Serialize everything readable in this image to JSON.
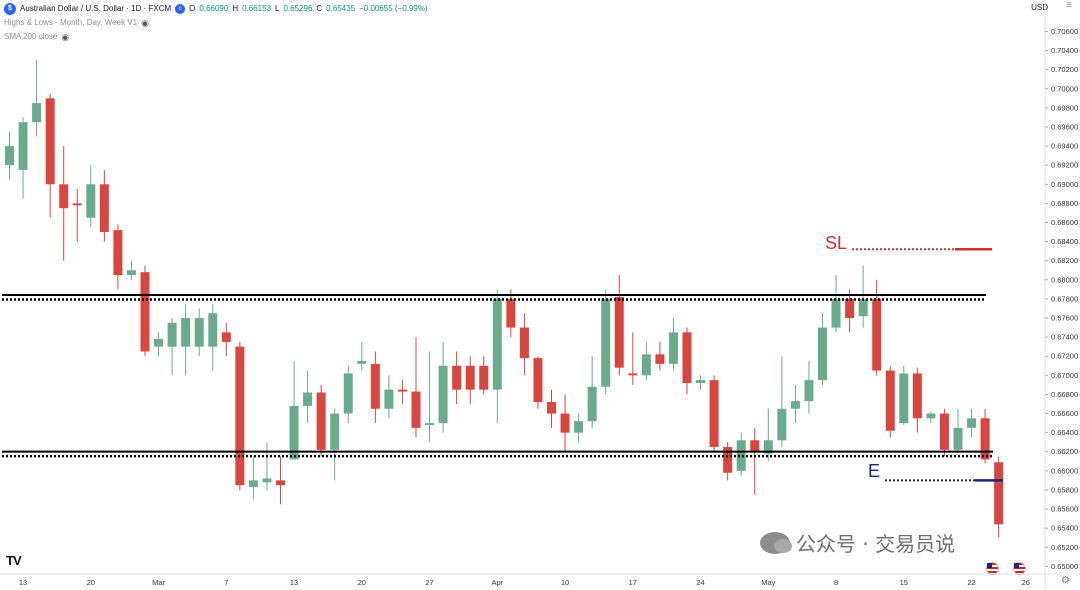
{
  "legend": {
    "symbol_icon": "aud-usd-flag-icon",
    "title": "Australian Dollar / U.S. Dollar · 1D · FXCM",
    "badge": "ⓒ",
    "ohlc": {
      "o_label": "O",
      "o": "0.66090",
      "h_label": "H",
      "h": "0.66153",
      "l_label": "L",
      "l": "0.65296",
      "c_label": "C",
      "c": "0.65435",
      "change": "−0.00655 (−0.99%)"
    },
    "indicator1": "Highs & Lows · Month, Day, Week V1",
    "indicator2": "SMA 200 close"
  },
  "currency": "USD",
  "tv_logo": "TV",
  "watermark": "公众号 · 交易员说",
  "annotations": {
    "sl": "SL",
    "e": "E"
  },
  "colors": {
    "up": "#6aab8e",
    "down": "#d9463f",
    "sl": "#d32f2f",
    "entry": "#1a237e",
    "level": "#000000"
  },
  "chart_data": {
    "type": "candlestick",
    "title": "Australian Dollar / U.S. Dollar · 1D · FXCM",
    "ylim": [
      0.6492,
      0.7072
    ],
    "y_ticks": [
      "0.70600",
      "0.70400",
      "0.70200",
      "0.70000",
      "0.69800",
      "0.69600",
      "0.69400",
      "0.69200",
      "0.69000",
      "0.68800",
      "0.68600",
      "0.68400",
      "0.68200",
      "0.68000",
      "0.67800",
      "0.67600",
      "0.67400",
      "0.67200",
      "0.67000",
      "0.66800",
      "0.66600",
      "0.66400",
      "0.66200",
      "0.66000",
      "0.65800",
      "0.65600",
      "0.65400",
      "0.65200",
      "0.65000"
    ],
    "x_tick_labels": [
      {
        "label": "13",
        "index": 1
      },
      {
        "label": "20",
        "index": 6
      },
      {
        "label": "Mar",
        "index": 11
      },
      {
        "label": "7",
        "index": 16
      },
      {
        "label": "13",
        "index": 21
      },
      {
        "label": "20",
        "index": 26
      },
      {
        "label": "27",
        "index": 31
      },
      {
        "label": "Apr",
        "index": 36
      },
      {
        "label": "10",
        "index": 41
      },
      {
        "label": "17",
        "index": 46
      },
      {
        "label": "24",
        "index": 51
      },
      {
        "label": "May",
        "index": 56
      },
      {
        "label": "8",
        "index": 61
      },
      {
        "label": "15",
        "index": 66
      },
      {
        "label": "22",
        "index": 71
      },
      {
        "label": "26",
        "index": 75
      }
    ],
    "candles": [
      {
        "o": 0.692,
        "h": 0.6955,
        "l": 0.6905,
        "c": 0.694
      },
      {
        "o": 0.6915,
        "h": 0.697,
        "l": 0.6885,
        "c": 0.6965
      },
      {
        "o": 0.6965,
        "h": 0.703,
        "l": 0.695,
        "c": 0.6985
      },
      {
        "o": 0.699,
        "h": 0.6995,
        "l": 0.6865,
        "c": 0.69
      },
      {
        "o": 0.69,
        "h": 0.694,
        "l": 0.682,
        "c": 0.6875
      },
      {
        "o": 0.688,
        "h": 0.6895,
        "l": 0.684,
        "c": 0.6878
      },
      {
        "o": 0.6865,
        "h": 0.692,
        "l": 0.6855,
        "c": 0.69
      },
      {
        "o": 0.69,
        "h": 0.6915,
        "l": 0.684,
        "c": 0.685
      },
      {
        "o": 0.6852,
        "h": 0.6858,
        "l": 0.679,
        "c": 0.6805
      },
      {
        "o": 0.6805,
        "h": 0.682,
        "l": 0.68,
        "c": 0.681
      },
      {
        "o": 0.6808,
        "h": 0.6815,
        "l": 0.672,
        "c": 0.6725
      },
      {
        "o": 0.673,
        "h": 0.6745,
        "l": 0.672,
        "c": 0.6738
      },
      {
        "o": 0.673,
        "h": 0.676,
        "l": 0.67,
        "c": 0.6755
      },
      {
        "o": 0.673,
        "h": 0.6775,
        "l": 0.67,
        "c": 0.676
      },
      {
        "o": 0.673,
        "h": 0.677,
        "l": 0.672,
        "c": 0.676
      },
      {
        "o": 0.673,
        "h": 0.6775,
        "l": 0.6705,
        "c": 0.6765
      },
      {
        "o": 0.6745,
        "h": 0.6755,
        "l": 0.672,
        "c": 0.6735
      },
      {
        "o": 0.673,
        "h": 0.6735,
        "l": 0.658,
        "c": 0.6585
      },
      {
        "o": 0.6583,
        "h": 0.6615,
        "l": 0.657,
        "c": 0.659
      },
      {
        "o": 0.6588,
        "h": 0.663,
        "l": 0.658,
        "c": 0.6592
      },
      {
        "o": 0.659,
        "h": 0.6615,
        "l": 0.6565,
        "c": 0.6585
      },
      {
        "o": 0.6612,
        "h": 0.6715,
        "l": 0.6612,
        "c": 0.6668
      },
      {
        "o": 0.6668,
        "h": 0.6705,
        "l": 0.665,
        "c": 0.6682
      },
      {
        "o": 0.6682,
        "h": 0.669,
        "l": 0.6615,
        "c": 0.6622
      },
      {
        "o": 0.6622,
        "h": 0.6665,
        "l": 0.659,
        "c": 0.666
      },
      {
        "o": 0.666,
        "h": 0.671,
        "l": 0.665,
        "c": 0.6702
      },
      {
        "o": 0.6712,
        "h": 0.6735,
        "l": 0.6705,
        "c": 0.6715
      },
      {
        "o": 0.6712,
        "h": 0.6725,
        "l": 0.665,
        "c": 0.6665
      },
      {
        "o": 0.6665,
        "h": 0.67,
        "l": 0.6655,
        "c": 0.6685
      },
      {
        "o": 0.6685,
        "h": 0.6695,
        "l": 0.667,
        "c": 0.6683
      },
      {
        "o": 0.6683,
        "h": 0.674,
        "l": 0.6635,
        "c": 0.6645
      },
      {
        "o": 0.6648,
        "h": 0.6725,
        "l": 0.663,
        "c": 0.665
      },
      {
        "o": 0.665,
        "h": 0.6735,
        "l": 0.664,
        "c": 0.671
      },
      {
        "o": 0.671,
        "h": 0.6725,
        "l": 0.667,
        "c": 0.6685
      },
      {
        "o": 0.671,
        "h": 0.672,
        "l": 0.667,
        "c": 0.6685
      },
      {
        "o": 0.671,
        "h": 0.672,
        "l": 0.668,
        "c": 0.6685
      },
      {
        "o": 0.6685,
        "h": 0.679,
        "l": 0.665,
        "c": 0.678
      },
      {
        "o": 0.678,
        "h": 0.679,
        "l": 0.674,
        "c": 0.675
      },
      {
        "o": 0.675,
        "h": 0.6765,
        "l": 0.67,
        "c": 0.6718
      },
      {
        "o": 0.6718,
        "h": 0.672,
        "l": 0.6665,
        "c": 0.6672
      },
      {
        "o": 0.6672,
        "h": 0.6685,
        "l": 0.6645,
        "c": 0.666
      },
      {
        "o": 0.666,
        "h": 0.668,
        "l": 0.662,
        "c": 0.664
      },
      {
        "o": 0.664,
        "h": 0.666,
        "l": 0.663,
        "c": 0.6652
      },
      {
        "o": 0.6652,
        "h": 0.672,
        "l": 0.6645,
        "c": 0.6688
      },
      {
        "o": 0.6688,
        "h": 0.679,
        "l": 0.668,
        "c": 0.678
      },
      {
        "o": 0.6782,
        "h": 0.6805,
        "l": 0.67,
        "c": 0.6708
      },
      {
        "o": 0.6702,
        "h": 0.6745,
        "l": 0.669,
        "c": 0.67
      },
      {
        "o": 0.67,
        "h": 0.6735,
        "l": 0.6695,
        "c": 0.6722
      },
      {
        "o": 0.6722,
        "h": 0.6735,
        "l": 0.6705,
        "c": 0.6712
      },
      {
        "o": 0.6712,
        "h": 0.676,
        "l": 0.6705,
        "c": 0.6745
      },
      {
        "o": 0.6745,
        "h": 0.675,
        "l": 0.668,
        "c": 0.6692
      },
      {
        "o": 0.6692,
        "h": 0.67,
        "l": 0.6685,
        "c": 0.6695
      },
      {
        "o": 0.6695,
        "h": 0.67,
        "l": 0.662,
        "c": 0.6625
      },
      {
        "o": 0.6625,
        "h": 0.663,
        "l": 0.659,
        "c": 0.6598
      },
      {
        "o": 0.66,
        "h": 0.664,
        "l": 0.6595,
        "c": 0.6632
      },
      {
        "o": 0.6632,
        "h": 0.6645,
        "l": 0.6575,
        "c": 0.662
      },
      {
        "o": 0.6618,
        "h": 0.6665,
        "l": 0.661,
        "c": 0.6632
      },
      {
        "o": 0.6632,
        "h": 0.672,
        "l": 0.6625,
        "c": 0.6665
      },
      {
        "o": 0.6665,
        "h": 0.669,
        "l": 0.665,
        "c": 0.6673
      },
      {
        "o": 0.6673,
        "h": 0.6715,
        "l": 0.666,
        "c": 0.6695
      },
      {
        "o": 0.6695,
        "h": 0.6765,
        "l": 0.669,
        "c": 0.675
      },
      {
        "o": 0.675,
        "h": 0.6805,
        "l": 0.6745,
        "c": 0.678
      },
      {
        "o": 0.678,
        "h": 0.679,
        "l": 0.6745,
        "c": 0.676
      },
      {
        "o": 0.6762,
        "h": 0.6815,
        "l": 0.675,
        "c": 0.678
      },
      {
        "o": 0.678,
        "h": 0.68,
        "l": 0.67,
        "c": 0.6705
      },
      {
        "o": 0.6705,
        "h": 0.671,
        "l": 0.6635,
        "c": 0.6642
      },
      {
        "o": 0.665,
        "h": 0.671,
        "l": 0.6648,
        "c": 0.6702
      },
      {
        "o": 0.6702,
        "h": 0.6708,
        "l": 0.664,
        "c": 0.6655
      },
      {
        "o": 0.6655,
        "h": 0.6662,
        "l": 0.665,
        "c": 0.666
      },
      {
        "o": 0.666,
        "h": 0.6665,
        "l": 0.6615,
        "c": 0.6622
      },
      {
        "o": 0.6622,
        "h": 0.6665,
        "l": 0.662,
        "c": 0.6645
      },
      {
        "o": 0.6645,
        "h": 0.6665,
        "l": 0.6635,
        "c": 0.6655
      },
      {
        "o": 0.6655,
        "h": 0.6665,
        "l": 0.6608,
        "c": 0.6612
      },
      {
        "o": 0.6609,
        "h": 0.6615,
        "l": 0.653,
        "c": 0.6544
      }
    ],
    "levels": [
      {
        "name": "resistance",
        "value": 0.6782
      },
      {
        "name": "support",
        "value": 0.6618
      }
    ],
    "stop_loss": 0.6832,
    "entry": 0.659
  }
}
